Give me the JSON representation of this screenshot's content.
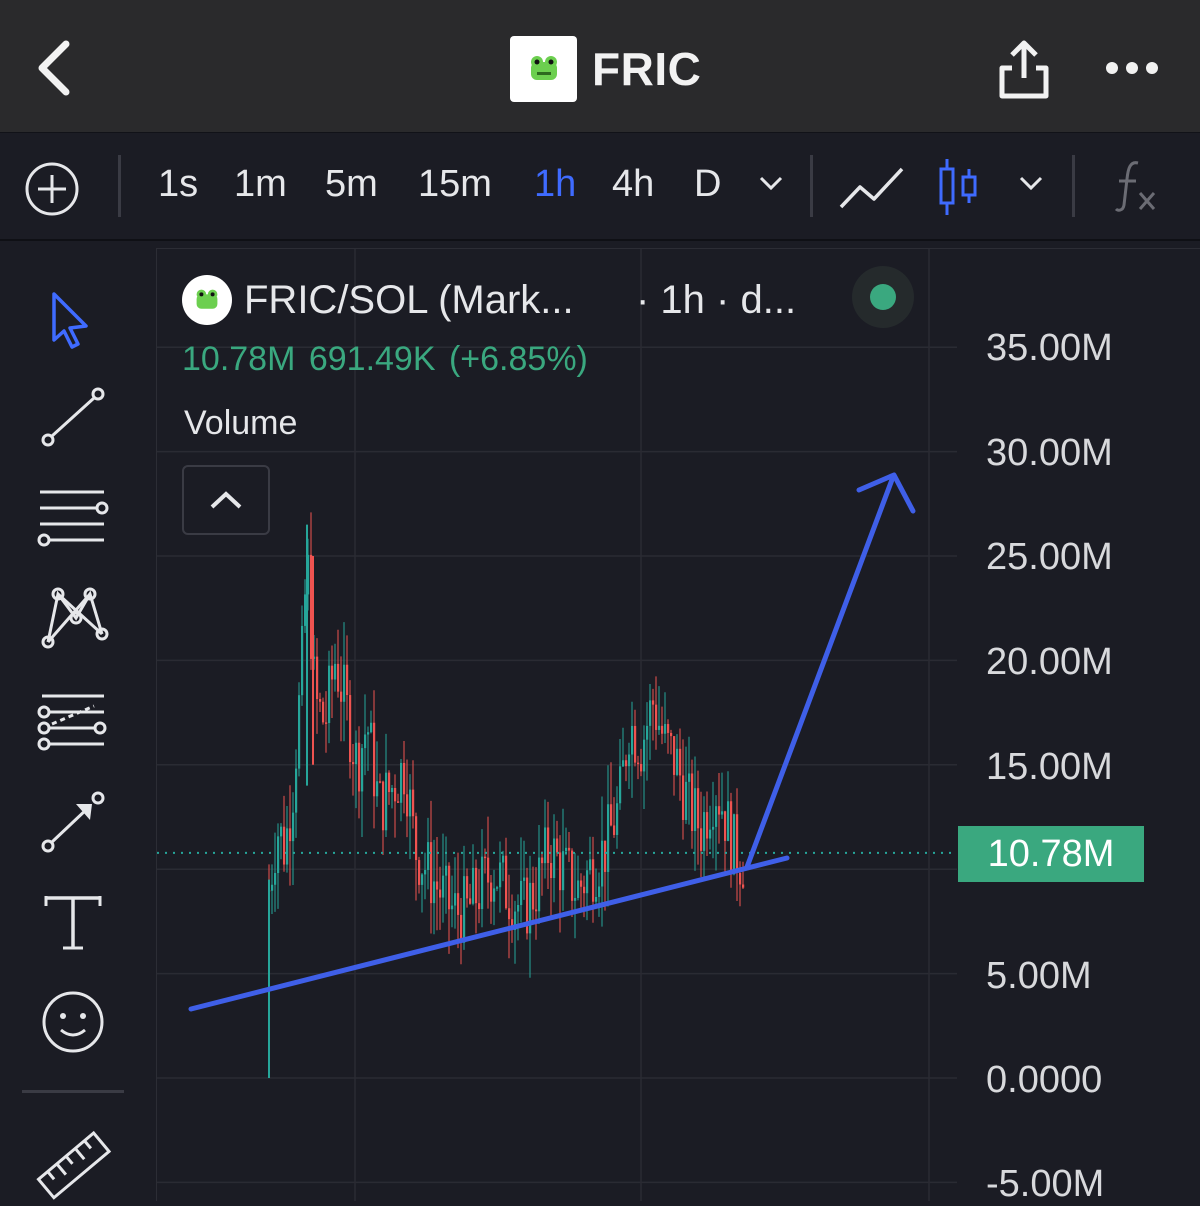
{
  "header": {
    "title": "FRIC",
    "back_icon": "chevron-left-icon",
    "share_icon": "share-icon",
    "more_icon": "more-horizontal-icon",
    "logo_icon": "frog-logo-icon"
  },
  "toolbar": {
    "add_icon": "plus-circle-icon",
    "timeframes": [
      "1s",
      "1m",
      "5m",
      "15m",
      "1h",
      "4h",
      "D"
    ],
    "active_timeframe": "1h",
    "dropdown_icon": "chevron-down-icon",
    "line_chart_icon": "line-chart-icon",
    "candle_chart_icon": "candlestick-icon",
    "indicator_icon": "fx-icon",
    "accent_color": "#3f6bff"
  },
  "left_tools": [
    "cursor-icon",
    "trend-line-icon",
    "horizontal-lines-icon",
    "pattern-icon",
    "fib-icon",
    "arrow-icon",
    "text-icon",
    "emoji-icon",
    "ruler-icon"
  ],
  "legend": {
    "symbol": "FRIC/SOL (Mark...",
    "meta": "· 1h · d...",
    "ohlc": "10.78M  691.49K (+6.85%)",
    "volume_label": "Volume",
    "status_color": "#3aa87f"
  },
  "chart_data": {
    "type": "candlestick",
    "ylim": [
      -5000000,
      37000000
    ],
    "y_ticks": [
      "35.00M",
      "30.00M",
      "25.00M",
      "20.00M",
      "15.00M",
      "5.00M",
      "0.0000",
      "-5.00M"
    ],
    "last_price": "10.78M",
    "up_color": "#26a69a",
    "down_color": "#ef5350",
    "annotation_color": "#3f5fe8",
    "trend_line_start": [
      0,
      3900000
    ],
    "trend_line_end": [
      1,
      10400000
    ],
    "arrow_target_value": 29000000
  }
}
